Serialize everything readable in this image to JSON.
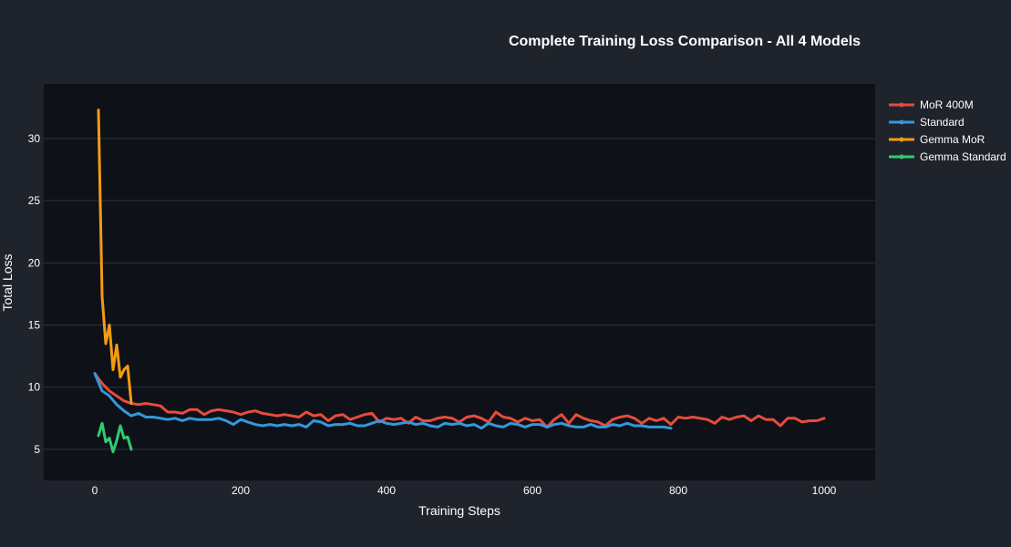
{
  "chart_data": {
    "type": "line",
    "title": "Complete Training Loss Comparison - All 4 Models",
    "xlabel": "Training Steps",
    "ylabel": "Total Loss",
    "xlim": [
      -70,
      1070
    ],
    "ylim": [
      2.5,
      34.4
    ],
    "xticks": [
      0,
      200,
      400,
      600,
      800,
      1000
    ],
    "yticks": [
      5,
      10,
      15,
      20,
      25,
      30
    ],
    "grid": true,
    "legend_position": "top-right, outside plot",
    "colors": {
      "page_background": "#1f232b",
      "plot_background": "#0e1118",
      "grid": "#2d3340",
      "text": "#ffffff"
    },
    "series": [
      {
        "name": "MoR 400M",
        "color": "#e74c3c",
        "x": [
          0,
          10,
          20,
          30,
          40,
          50,
          60,
          70,
          80,
          90,
          100,
          110,
          120,
          130,
          140,
          150,
          160,
          170,
          180,
          190,
          200,
          210,
          220,
          230,
          240,
          250,
          260,
          270,
          280,
          290,
          300,
          310,
          320,
          330,
          340,
          350,
          360,
          370,
          380,
          390,
          400,
          410,
          420,
          430,
          440,
          450,
          460,
          470,
          480,
          490,
          500,
          510,
          520,
          530,
          540,
          550,
          560,
          570,
          580,
          590,
          600,
          610,
          620,
          630,
          640,
          650,
          660,
          670,
          680,
          690,
          700,
          710,
          720,
          730,
          740,
          750,
          760,
          770,
          780,
          790,
          800,
          810,
          820,
          830,
          840,
          850,
          860,
          870,
          880,
          890,
          900,
          910,
          920,
          930,
          940,
          950,
          960,
          970,
          980,
          990,
          1000
        ],
        "y": [
          11.1,
          10.3,
          9.7,
          9.3,
          8.9,
          8.7,
          8.6,
          8.7,
          8.6,
          8.5,
          8.0,
          8.0,
          7.9,
          8.2,
          8.2,
          7.8,
          8.1,
          8.2,
          8.1,
          8.0,
          7.8,
          8.0,
          8.1,
          7.9,
          7.8,
          7.7,
          7.8,
          7.7,
          7.6,
          8.0,
          7.7,
          7.8,
          7.3,
          7.7,
          7.8,
          7.4,
          7.6,
          7.8,
          7.9,
          7.2,
          7.5,
          7.4,
          7.5,
          7.1,
          7.6,
          7.3,
          7.3,
          7.5,
          7.6,
          7.5,
          7.2,
          7.6,
          7.7,
          7.5,
          7.2,
          8.0,
          7.6,
          7.5,
          7.2,
          7.5,
          7.3,
          7.4,
          6.8,
          7.4,
          7.8,
          7.1,
          7.8,
          7.5,
          7.3,
          7.2,
          6.9,
          7.4,
          7.6,
          7.7,
          7.5,
          7.1,
          7.5,
          7.3,
          7.5,
          7.0,
          7.6,
          7.5,
          7.6,
          7.5,
          7.4,
          7.1,
          7.6,
          7.4,
          7.6,
          7.7,
          7.3,
          7.7,
          7.4,
          7.4,
          6.9,
          7.5,
          7.5,
          7.2,
          7.3,
          7.3,
          7.5
        ]
      },
      {
        "name": "Standard",
        "color": "#3498db",
        "x": [
          0,
          10,
          20,
          30,
          40,
          50,
          60,
          70,
          80,
          90,
          100,
          110,
          120,
          130,
          140,
          150,
          160,
          170,
          180,
          190,
          200,
          210,
          220,
          230,
          240,
          250,
          260,
          270,
          280,
          290,
          300,
          310,
          320,
          330,
          340,
          350,
          360,
          370,
          380,
          390,
          400,
          410,
          420,
          430,
          440,
          450,
          460,
          470,
          480,
          490,
          500,
          510,
          520,
          530,
          540,
          550,
          560,
          570,
          580,
          590,
          600,
          610,
          620,
          630,
          640,
          650,
          660,
          670,
          680,
          690,
          700,
          710,
          720,
          730,
          740,
          750,
          760,
          770,
          780,
          790
        ],
        "y": [
          11.1,
          9.7,
          9.3,
          8.6,
          8.1,
          7.7,
          7.9,
          7.6,
          7.6,
          7.5,
          7.4,
          7.5,
          7.3,
          7.5,
          7.4,
          7.4,
          7.4,
          7.5,
          7.3,
          7.0,
          7.4,
          7.2,
          7.0,
          6.9,
          7.0,
          6.9,
          7.0,
          6.9,
          7.0,
          6.8,
          7.3,
          7.2,
          6.9,
          7.0,
          7.0,
          7.1,
          6.9,
          6.9,
          7.1,
          7.3,
          7.1,
          7.0,
          7.1,
          7.2,
          7.0,
          7.1,
          6.9,
          6.8,
          7.1,
          7.0,
          7.1,
          6.9,
          7.0,
          6.7,
          7.1,
          6.9,
          6.8,
          7.1,
          7.0,
          6.8,
          7.0,
          7.0,
          6.8,
          7.0,
          7.1,
          6.9,
          6.8,
          6.8,
          7.0,
          6.8,
          6.8,
          7.0,
          6.9,
          7.1,
          6.9,
          6.9,
          6.8,
          6.8,
          6.8,
          6.7
        ]
      },
      {
        "name": "Gemma MoR",
        "color": "#f39c12",
        "x": [
          5,
          10,
          15,
          20,
          25,
          30,
          35,
          40,
          45,
          50
        ],
        "y": [
          32.3,
          17.3,
          13.5,
          15.0,
          11.4,
          13.4,
          10.8,
          11.4,
          11.7,
          8.7
        ]
      },
      {
        "name": "Gemma Standard",
        "color": "#2ecc71",
        "x": [
          5,
          10,
          15,
          20,
          25,
          30,
          35,
          40,
          45,
          50
        ],
        "y": [
          6.1,
          7.1,
          5.6,
          5.9,
          4.8,
          5.7,
          6.9,
          5.9,
          6.0,
          5.0
        ]
      }
    ]
  }
}
